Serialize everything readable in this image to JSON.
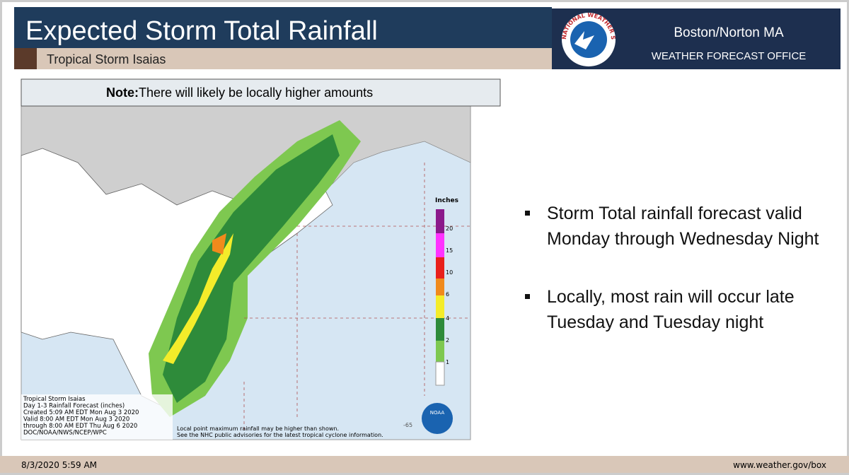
{
  "header": {
    "title": "Expected Storm Total Rainfall",
    "subtitle": "Tropical Storm Isaias"
  },
  "office": {
    "logo_text": "NATIONAL WEATHER SERVICE",
    "name": "Boston/Norton MA",
    "subtitle": "WEATHER FORECAST OFFICE"
  },
  "note": {
    "label": "Note:",
    "text": "There will likely be locally higher amounts"
  },
  "map": {
    "legend_title": "Inches",
    "legend_labels": [
      "20",
      "15",
      "10",
      "6",
      "4",
      "2",
      "1"
    ],
    "caption": [
      "Tropical Storm Isaias",
      "Day 1-3 Rainfall Forecast (inches)",
      "Created 5:09 AM EDT Mon Aug 3 2020",
      "Valid 8:00 AM EDT Mon Aug 3 2020",
      "through 8:00 AM EDT Thu Aug 6 2020",
      "DOC/NOAA/NWS/NCEP/WPC"
    ],
    "footnote": [
      "Local point maximum rainfall may be higher than shown.",
      "See the NHC public advisories for the latest tropical cyclone information."
    ],
    "longitude_label": "-65",
    "noaa_label": "NOAA"
  },
  "bullets": [
    "Storm Total rainfall forecast valid Monday through Wednesday Night",
    "Locally, most rain will occur late Tuesday and Tuesday night"
  ],
  "footer": {
    "date": "8/3/2020 5:59 AM",
    "url": "www.weather.gov/box"
  }
}
